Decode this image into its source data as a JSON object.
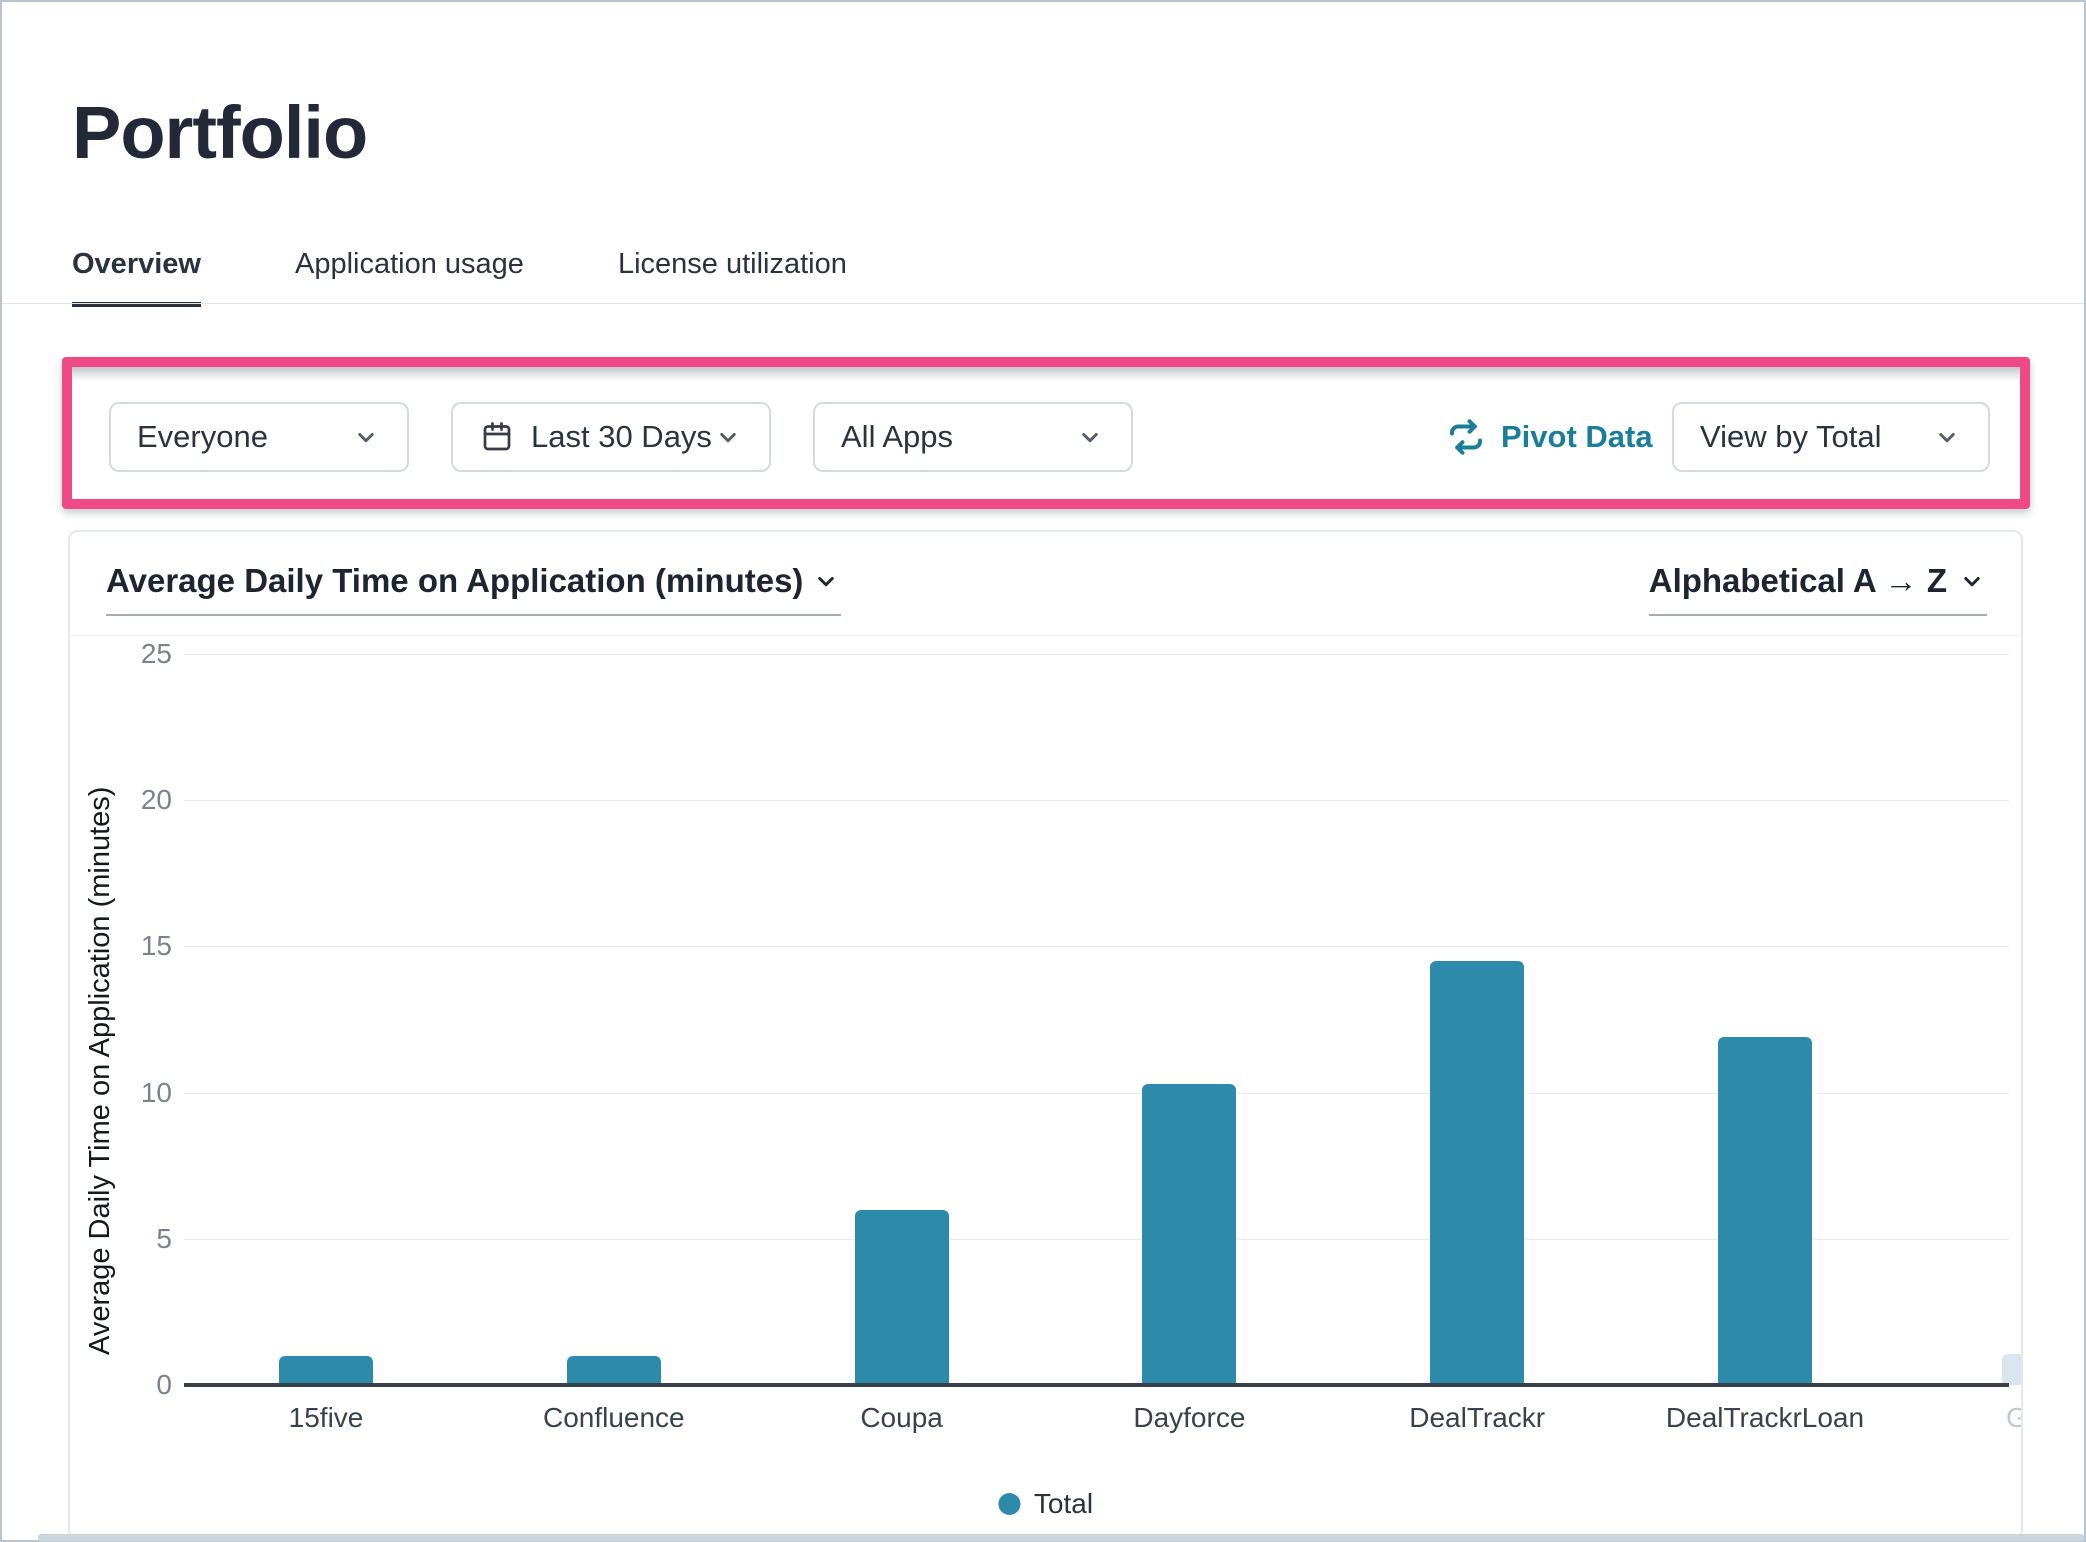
{
  "page": {
    "title": "Portfolio"
  },
  "tabs": [
    {
      "label": "Overview",
      "active": true
    },
    {
      "label": "Application usage",
      "active": false
    },
    {
      "label": "License utilization",
      "active": false
    }
  ],
  "filters": {
    "audience": {
      "value": "Everyone"
    },
    "date_range": {
      "value": "Last 30 Days",
      "icon": "calendar-icon"
    },
    "apps": {
      "value": "All Apps"
    },
    "pivot_label": "Pivot Data",
    "view_by": {
      "value": "View by Total"
    }
  },
  "chart_card": {
    "metric_title": "Average Daily Time on Application (minutes)",
    "sort_label": "Alphabetical A → Z"
  },
  "chart_data": {
    "type": "bar",
    "title": "Average Daily Time on Application (minutes)",
    "ylabel": "Average Daily Time on Application (minutes)",
    "categories": [
      "15five",
      "Confluence",
      "Coupa",
      "Dayforce",
      "DealTrackr",
      "DealTrackrLoan"
    ],
    "values": [
      1.0,
      1.0,
      6.0,
      10.3,
      14.5,
      11.9
    ],
    "partial_next": {
      "label": "G",
      "value": 1.05
    },
    "ylim": [
      0,
      25
    ],
    "yticks": [
      0,
      5,
      10,
      15,
      20,
      25
    ],
    "grid": true,
    "legend_position": "bottom",
    "legend_label": "Total",
    "bar_color": "#2e8aab"
  },
  "colors": {
    "accent_teal": "#1b7e99",
    "bar_teal": "#2e8aab",
    "highlight_pink": "#ef4a85",
    "axis_line": "#3a4048"
  }
}
